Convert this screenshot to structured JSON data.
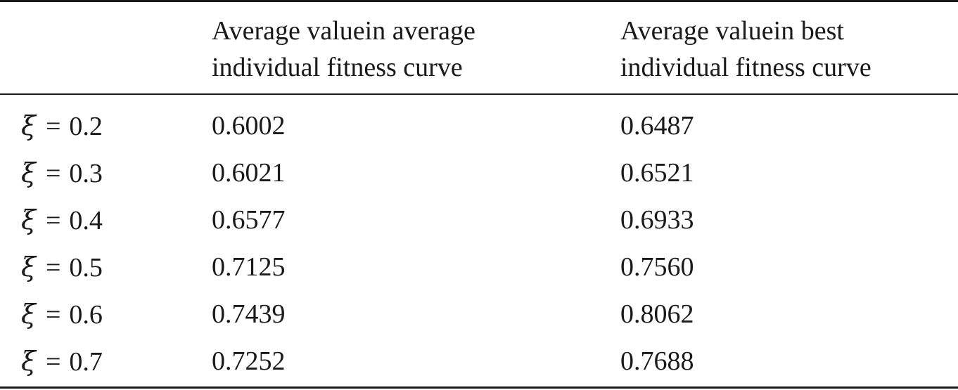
{
  "table": {
    "header": {
      "col1_line1": "Average valuein average",
      "col1_line2": "individual fitness curve",
      "col2_line1": "Average valuein best",
      "col2_line2": "individual fitness curve"
    },
    "param_symbol": "ξ",
    "equals_sign": "=",
    "rows": [
      {
        "xi": "0.2",
        "avg": "0.6002",
        "best": "0.6487"
      },
      {
        "xi": "0.3",
        "avg": "0.6021",
        "best": "0.6521"
      },
      {
        "xi": "0.4",
        "avg": "0.6577",
        "best": "0.6933"
      },
      {
        "xi": "0.5",
        "avg": "0.7125",
        "best": "0.7560"
      },
      {
        "xi": "0.6",
        "avg": "0.7439",
        "best": "0.8062"
      },
      {
        "xi": "0.7",
        "avg": "0.7252",
        "best": "0.7688"
      }
    ]
  }
}
